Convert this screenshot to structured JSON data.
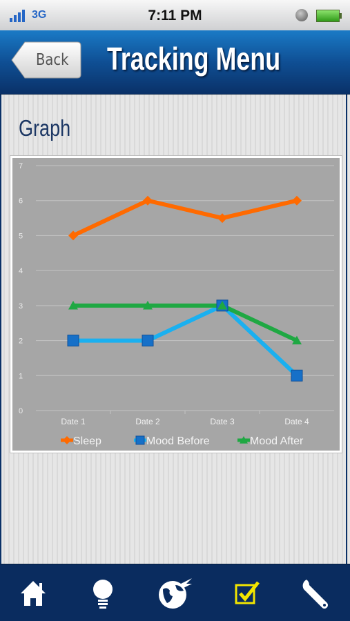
{
  "status_bar": {
    "network": "3G",
    "time": "7:11 PM"
  },
  "nav": {
    "back_label": "Back",
    "title": "Tracking Menu"
  },
  "section": {
    "title": "Graph"
  },
  "chart_data": {
    "type": "line",
    "categories": [
      "Date 1",
      "Date 2",
      "Date 3",
      "Date 4"
    ],
    "ylim": [
      0,
      7
    ],
    "yticks": [
      0,
      1,
      2,
      3,
      4,
      5,
      6,
      7
    ],
    "grid": true,
    "legend_position": "bottom",
    "series": [
      {
        "name": "Sleep",
        "values": [
          5,
          6,
          5.5,
          6
        ],
        "color": "#ff6a00",
        "marker": "diamond",
        "marker_color": "#ff6a00"
      },
      {
        "name": "Mood Before",
        "values": [
          2,
          2,
          3,
          1
        ],
        "color": "#1ab0f0",
        "marker": "square",
        "marker_color": "#1670c8"
      },
      {
        "name": "Mood After",
        "values": [
          3,
          3,
          3,
          2
        ],
        "color": "#1fa843",
        "marker": "triangle",
        "marker_color": "#1fa843"
      }
    ]
  },
  "tab_bar": {
    "items": [
      {
        "icon": "home-icon"
      },
      {
        "icon": "lightbulb-icon"
      },
      {
        "icon": "globe-icon"
      },
      {
        "icon": "checkbox-icon",
        "selected": true
      },
      {
        "icon": "wrench-icon"
      }
    ]
  }
}
